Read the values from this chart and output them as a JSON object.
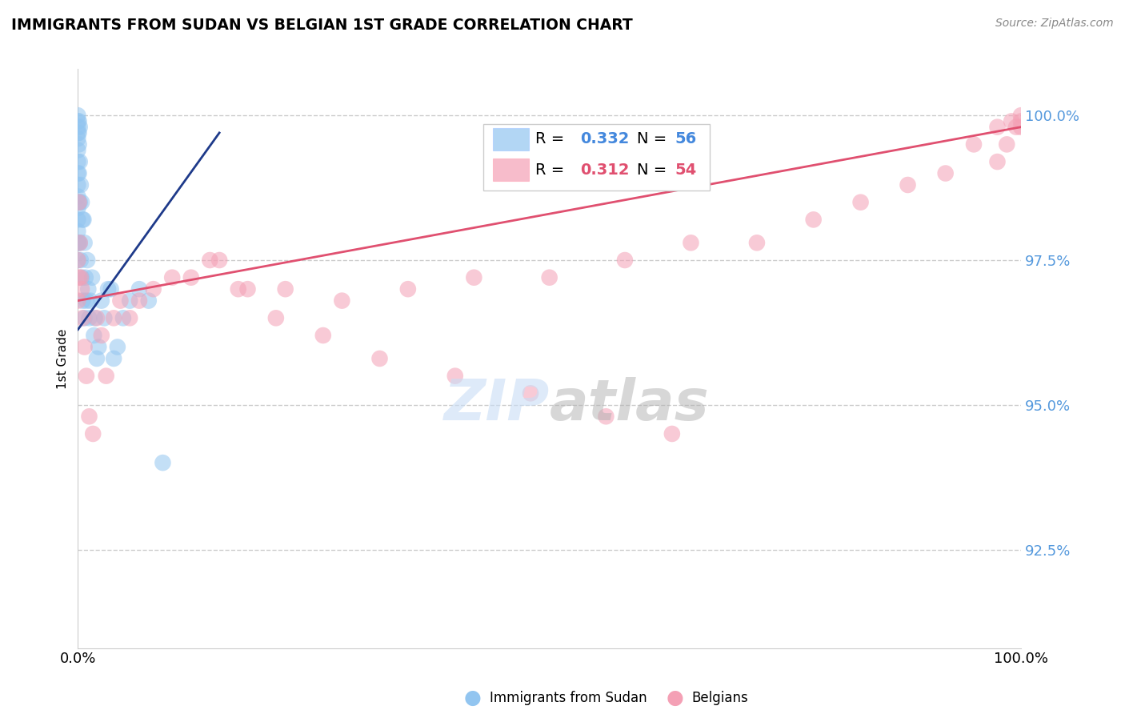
{
  "title": "IMMIGRANTS FROM SUDAN VS BELGIAN 1ST GRADE CORRELATION CHART",
  "source_text": "Source: ZipAtlas.com",
  "ylabel": "1st Grade",
  "xlim": [
    0.0,
    1.0
  ],
  "ylim": [
    0.908,
    1.008
  ],
  "ytick_vals": [
    0.925,
    0.95,
    0.975,
    1.0
  ],
  "ytick_labels": [
    "92.5%",
    "95.0%",
    "97.5%",
    "100.0%"
  ],
  "legend_r1": "R = 0.332",
  "legend_n1": "N = 56",
  "legend_r2": "R = 0.312",
  "legend_n2": "N = 54",
  "color_blue": "#92C5F0",
  "color_pink": "#F4A0B5",
  "color_blue_line": "#1E3A8A",
  "color_pink_line": "#E05070",
  "legend_label1": "Immigrants from Sudan",
  "legend_label2": "Belgians",
  "sudan_x": [
    0.0,
    0.0,
    0.0,
    0.0,
    0.0,
    0.0,
    0.0,
    0.0,
    0.0,
    0.0,
    0.0,
    0.0,
    0.0,
    0.0,
    0.0,
    0.001,
    0.001,
    0.001,
    0.001,
    0.001,
    0.001,
    0.002,
    0.002,
    0.002,
    0.002,
    0.003,
    0.003,
    0.004,
    0.004,
    0.005,
    0.005,
    0.006,
    0.007,
    0.007,
    0.008,
    0.009,
    0.01,
    0.011,
    0.012,
    0.013,
    0.015,
    0.017,
    0.018,
    0.02,
    0.022,
    0.025,
    0.028,
    0.032,
    0.035,
    0.038,
    0.042,
    0.048,
    0.055,
    0.065,
    0.075,
    0.09
  ],
  "sudan_y": [
    1.0,
    0.999,
    0.998,
    0.997,
    0.996,
    0.994,
    0.992,
    0.99,
    0.988,
    0.986,
    0.984,
    0.982,
    0.98,
    0.978,
    0.975,
    0.999,
    0.997,
    0.995,
    0.99,
    0.985,
    0.978,
    0.998,
    0.992,
    0.985,
    0.978,
    0.988,
    0.975,
    0.985,
    0.972,
    0.982,
    0.968,
    0.982,
    0.978,
    0.965,
    0.972,
    0.968,
    0.975,
    0.97,
    0.965,
    0.968,
    0.972,
    0.962,
    0.965,
    0.958,
    0.96,
    0.968,
    0.965,
    0.97,
    0.97,
    0.958,
    0.96,
    0.965,
    0.968,
    0.97,
    0.968,
    0.94
  ],
  "belgian_x": [
    0.0,
    0.0,
    0.001,
    0.001,
    0.002,
    0.003,
    0.004,
    0.005,
    0.007,
    0.009,
    0.012,
    0.016,
    0.02,
    0.025,
    0.03,
    0.038,
    0.045,
    0.055,
    0.065,
    0.08,
    0.1,
    0.12,
    0.15,
    0.18,
    0.22,
    0.28,
    0.35,
    0.42,
    0.5,
    0.58,
    0.65,
    0.72,
    0.78,
    0.83,
    0.88,
    0.92,
    0.95,
    0.975,
    0.99,
    1.0,
    1.0,
    1.0,
    0.995,
    0.985,
    0.975,
    0.14,
    0.17,
    0.21,
    0.26,
    0.32,
    0.4,
    0.48,
    0.56,
    0.63
  ],
  "belgian_y": [
    0.975,
    0.968,
    0.985,
    0.972,
    0.978,
    0.972,
    0.97,
    0.965,
    0.96,
    0.955,
    0.948,
    0.945,
    0.965,
    0.962,
    0.955,
    0.965,
    0.968,
    0.965,
    0.968,
    0.97,
    0.972,
    0.972,
    0.975,
    0.97,
    0.97,
    0.968,
    0.97,
    0.972,
    0.972,
    0.975,
    0.978,
    0.978,
    0.982,
    0.985,
    0.988,
    0.99,
    0.995,
    0.998,
    0.999,
    1.0,
    0.999,
    0.998,
    0.998,
    0.995,
    0.992,
    0.975,
    0.97,
    0.965,
    0.962,
    0.958,
    0.955,
    0.952,
    0.948,
    0.945
  ],
  "blue_trendline_x": [
    0.0,
    0.15
  ],
  "blue_trendline_y": [
    0.963,
    0.997
  ],
  "pink_trendline_x": [
    0.0,
    1.0
  ],
  "pink_trendline_y": [
    0.968,
    0.998
  ]
}
